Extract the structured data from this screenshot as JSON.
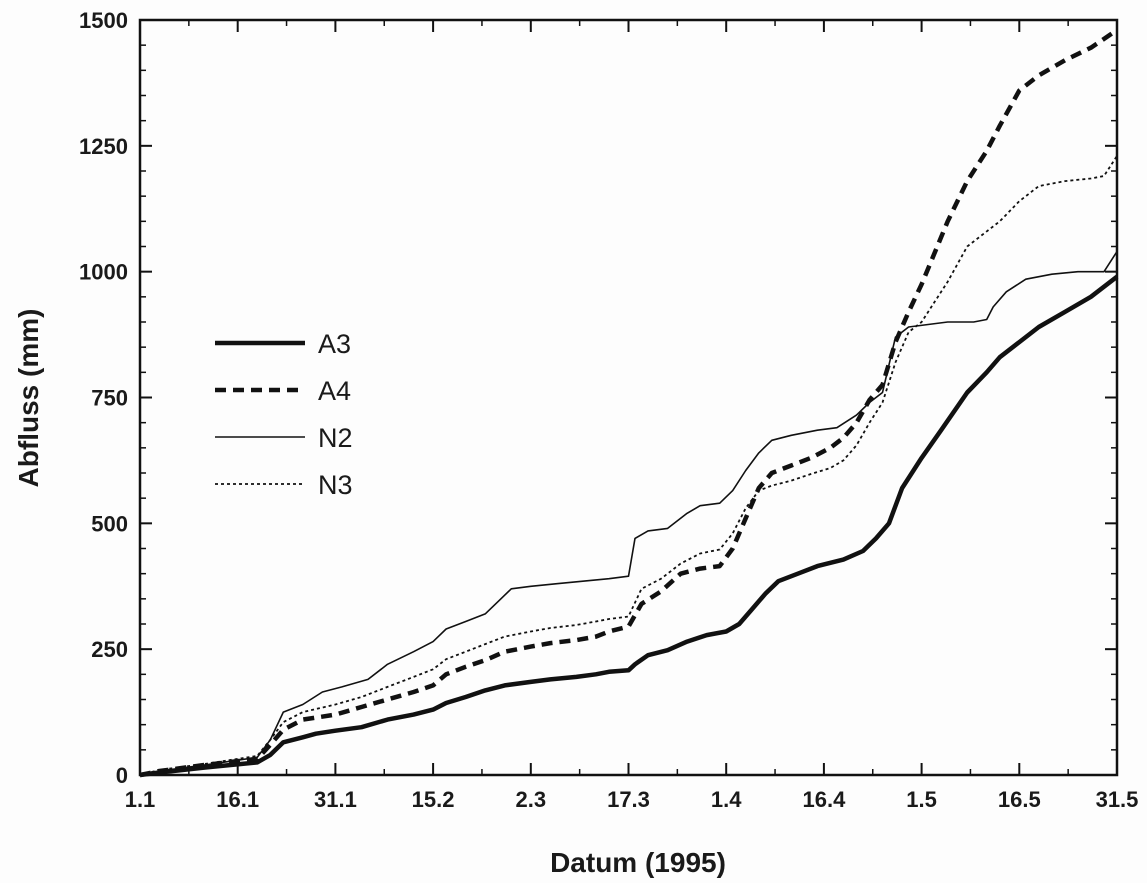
{
  "chart_data": {
    "type": "line",
    "title": "",
    "xlabel": "Datum (1995)",
    "ylabel": "Abfluss (mm)",
    "xlim": [
      0,
      150
    ],
    "ylim": [
      0,
      1500
    ],
    "x_ticks": [
      {
        "value": 0,
        "label": "1.1"
      },
      {
        "value": 15,
        "label": "16.1"
      },
      {
        "value": 30,
        "label": "31.1"
      },
      {
        "value": 45,
        "label": "15.2"
      },
      {
        "value": 60,
        "label": "2.3"
      },
      {
        "value": 75,
        "label": "17.3"
      },
      {
        "value": 90,
        "label": "1.4"
      },
      {
        "value": 105,
        "label": "16.4"
      },
      {
        "value": 120,
        "label": "1.5"
      },
      {
        "value": 135,
        "label": "16.5"
      },
      {
        "value": 150,
        "label": "31.5"
      }
    ],
    "y_ticks": [
      0,
      250,
      500,
      750,
      1000,
      1250,
      1500
    ],
    "grid": false,
    "legend": {
      "position": "center-left"
    },
    "series": [
      {
        "name": "A3",
        "style": "thick-solid",
        "color": "#111111",
        "points": [
          [
            0,
            0
          ],
          [
            3,
            5
          ],
          [
            10,
            15
          ],
          [
            18,
            25
          ],
          [
            20,
            40
          ],
          [
            22,
            65
          ],
          [
            25,
            75
          ],
          [
            27,
            82
          ],
          [
            30,
            88
          ],
          [
            34,
            95
          ],
          [
            38,
            110
          ],
          [
            42,
            120
          ],
          [
            45,
            130
          ],
          [
            47,
            143
          ],
          [
            50,
            155
          ],
          [
            53,
            168
          ],
          [
            56,
            178
          ],
          [
            60,
            185
          ],
          [
            63,
            190
          ],
          [
            67,
            195
          ],
          [
            70,
            200
          ],
          [
            72,
            205
          ],
          [
            75,
            208
          ],
          [
            76,
            220
          ],
          [
            78,
            238
          ],
          [
            81,
            248
          ],
          [
            84,
            265
          ],
          [
            87,
            278
          ],
          [
            90,
            285
          ],
          [
            92,
            300
          ],
          [
            94,
            330
          ],
          [
            96,
            360
          ],
          [
            98,
            385
          ],
          [
            101,
            400
          ],
          [
            104,
            415
          ],
          [
            108,
            428
          ],
          [
            111,
            445
          ],
          [
            113,
            470
          ],
          [
            115,
            500
          ],
          [
            117,
            570
          ],
          [
            120,
            630
          ],
          [
            123,
            685
          ],
          [
            127,
            760
          ],
          [
            130,
            800
          ],
          [
            132,
            830
          ],
          [
            135,
            860
          ],
          [
            138,
            890
          ],
          [
            142,
            920
          ],
          [
            146,
            950
          ],
          [
            150,
            990
          ]
        ]
      },
      {
        "name": "A4",
        "style": "thick-dashed",
        "color": "#111111",
        "points": [
          [
            0,
            0
          ],
          [
            3,
            8
          ],
          [
            10,
            20
          ],
          [
            18,
            32
          ],
          [
            20,
            60
          ],
          [
            22,
            90
          ],
          [
            25,
            110
          ],
          [
            30,
            120
          ],
          [
            34,
            135
          ],
          [
            38,
            150
          ],
          [
            42,
            165
          ],
          [
            45,
            178
          ],
          [
            47,
            200
          ],
          [
            50,
            215
          ],
          [
            53,
            228
          ],
          [
            56,
            245
          ],
          [
            60,
            255
          ],
          [
            63,
            262
          ],
          [
            67,
            268
          ],
          [
            70,
            275
          ],
          [
            72,
            285
          ],
          [
            75,
            295
          ],
          [
            77,
            340
          ],
          [
            80,
            365
          ],
          [
            83,
            400
          ],
          [
            86,
            410
          ],
          [
            89,
            415
          ],
          [
            91,
            450
          ],
          [
            93,
            510
          ],
          [
            95,
            570
          ],
          [
            97,
            600
          ],
          [
            100,
            615
          ],
          [
            103,
            630
          ],
          [
            106,
            650
          ],
          [
            108,
            670
          ],
          [
            110,
            700
          ],
          [
            112,
            745
          ],
          [
            114,
            775
          ],
          [
            116,
            860
          ],
          [
            118,
            920
          ],
          [
            120,
            975
          ],
          [
            124,
            1100
          ],
          [
            127,
            1180
          ],
          [
            130,
            1240
          ],
          [
            132,
            1290
          ],
          [
            135,
            1360
          ],
          [
            138,
            1390
          ],
          [
            142,
            1420
          ],
          [
            146,
            1445
          ],
          [
            150,
            1480
          ]
        ]
      },
      {
        "name": "N2",
        "style": "thin-solid",
        "color": "#111111",
        "points": [
          [
            0,
            0
          ],
          [
            3,
            8
          ],
          [
            10,
            20
          ],
          [
            18,
            35
          ],
          [
            20,
            70
          ],
          [
            22,
            125
          ],
          [
            25,
            140
          ],
          [
            28,
            165
          ],
          [
            31,
            175
          ],
          [
            35,
            190
          ],
          [
            38,
            220
          ],
          [
            42,
            245
          ],
          [
            45,
            265
          ],
          [
            47,
            290
          ],
          [
            50,
            305
          ],
          [
            53,
            320
          ],
          [
            55,
            345
          ],
          [
            57,
            370
          ],
          [
            60,
            375
          ],
          [
            64,
            380
          ],
          [
            68,
            385
          ],
          [
            72,
            390
          ],
          [
            75,
            395
          ],
          [
            76,
            470
          ],
          [
            78,
            485
          ],
          [
            81,
            490
          ],
          [
            84,
            520
          ],
          [
            86,
            535
          ],
          [
            89,
            540
          ],
          [
            91,
            565
          ],
          [
            93,
            605
          ],
          [
            95,
            640
          ],
          [
            97,
            665
          ],
          [
            100,
            675
          ],
          [
            104,
            685
          ],
          [
            107,
            690
          ],
          [
            110,
            715
          ],
          [
            112,
            740
          ],
          [
            114,
            760
          ],
          [
            116,
            870
          ],
          [
            118,
            890
          ],
          [
            121,
            895
          ],
          [
            124,
            900
          ],
          [
            128,
            900
          ],
          [
            130,
            905
          ],
          [
            131,
            930
          ],
          [
            133,
            960
          ],
          [
            136,
            985
          ],
          [
            140,
            995
          ],
          [
            144,
            1000
          ],
          [
            148,
            1000
          ],
          [
            150,
            1040
          ]
        ]
      },
      {
        "name": "N3",
        "style": "thin-dotted",
        "color": "#111111",
        "points": [
          [
            0,
            0
          ],
          [
            3,
            10
          ],
          [
            10,
            22
          ],
          [
            18,
            38
          ],
          [
            20,
            70
          ],
          [
            22,
            105
          ],
          [
            25,
            125
          ],
          [
            30,
            140
          ],
          [
            34,
            155
          ],
          [
            38,
            175
          ],
          [
            42,
            195
          ],
          [
            45,
            210
          ],
          [
            47,
            230
          ],
          [
            50,
            245
          ],
          [
            53,
            260
          ],
          [
            56,
            275
          ],
          [
            60,
            285
          ],
          [
            63,
            292
          ],
          [
            67,
            298
          ],
          [
            70,
            305
          ],
          [
            72,
            310
          ],
          [
            75,
            315
          ],
          [
            77,
            370
          ],
          [
            80,
            390
          ],
          [
            83,
            420
          ],
          [
            86,
            440
          ],
          [
            89,
            448
          ],
          [
            91,
            480
          ],
          [
            93,
            530
          ],
          [
            95,
            565
          ],
          [
            97,
            575
          ],
          [
            100,
            585
          ],
          [
            103,
            598
          ],
          [
            106,
            610
          ],
          [
            108,
            625
          ],
          [
            110,
            655
          ],
          [
            112,
            700
          ],
          [
            114,
            740
          ],
          [
            116,
            820
          ],
          [
            118,
            880
          ],
          [
            120,
            900
          ],
          [
            122,
            940
          ],
          [
            124,
            980
          ],
          [
            127,
            1050
          ],
          [
            130,
            1080
          ],
          [
            132,
            1100
          ],
          [
            135,
            1140
          ],
          [
            138,
            1170
          ],
          [
            142,
            1180
          ],
          [
            146,
            1185
          ],
          [
            148,
            1190
          ],
          [
            150,
            1230
          ]
        ]
      }
    ]
  }
}
